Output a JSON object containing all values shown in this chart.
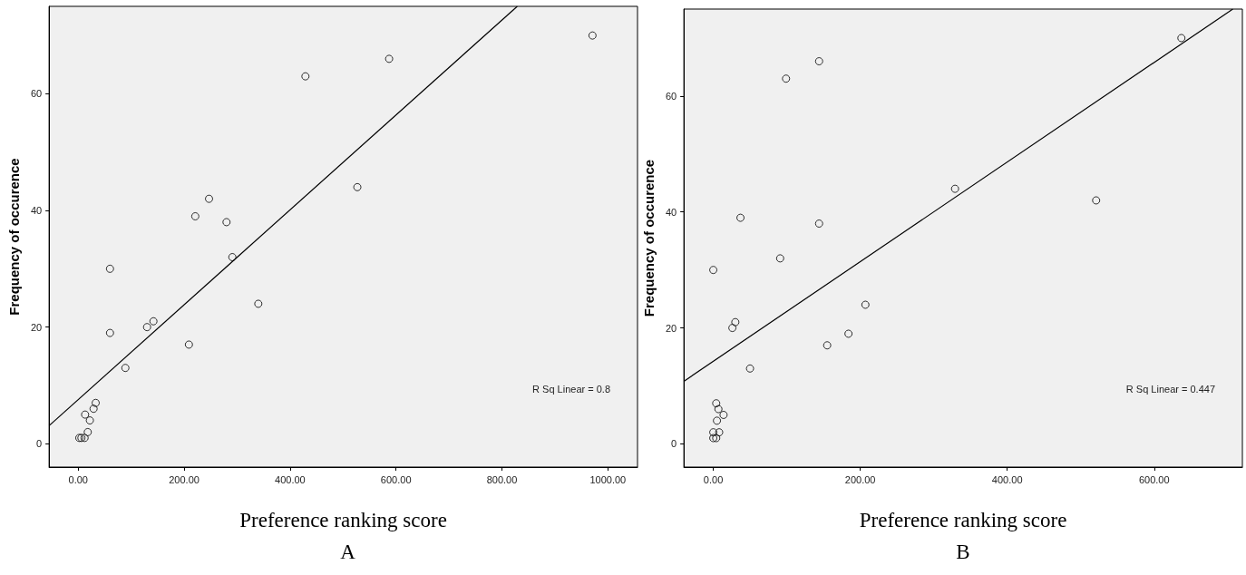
{
  "chart_data": [
    {
      "type": "scatter",
      "title": "A",
      "xlabel": "Preference ranking score",
      "ylabel": "Frequency of occurence",
      "marker": "circle",
      "grid": false,
      "xlim": [
        -55,
        1056
      ],
      "ylim": [
        -4,
        75
      ],
      "xticks": [
        {
          "value": 0,
          "label": "0.00"
        },
        {
          "value": 200,
          "label": "200.00"
        },
        {
          "value": 400,
          "label": "400.00"
        },
        {
          "value": 600,
          "label": "600.00"
        },
        {
          "value": 800,
          "label": "800.00"
        },
        {
          "value": 1000,
          "label": "1000.00"
        }
      ],
      "yticks": [
        0,
        20,
        40,
        60
      ],
      "annotations": [
        "R Sq Linear = 0.8"
      ],
      "series": [
        {
          "type": "scatter",
          "color": "#000000",
          "x": [
            2,
            6,
            12,
            18,
            13,
            22,
            29,
            33,
            60,
            60,
            89,
            130,
            142,
            209,
            221,
            247,
            280,
            291,
            340,
            429,
            527,
            587,
            971
          ],
          "values": [
            1,
            1,
            1,
            2,
            5,
            4,
            6,
            7,
            30,
            19,
            13,
            20,
            21,
            17,
            39,
            42,
            38,
            32,
            24,
            63,
            44,
            66,
            70
          ]
        },
        {
          "type": "line",
          "color": "#000000",
          "marker": "none",
          "x": [
            -55,
            829
          ],
          "values": [
            3.1,
            75
          ]
        }
      ]
    },
    {
      "type": "scatter",
      "title": "B",
      "xlabel": "Preference ranking score",
      "ylabel": "Frequency of occurence",
      "marker": "circle",
      "grid": false,
      "xlim": [
        -40,
        720
      ],
      "ylim": [
        -4,
        75
      ],
      "xticks": [
        {
          "value": 0,
          "label": "0.00"
        },
        {
          "value": 200,
          "label": "200.00"
        },
        {
          "value": 400,
          "label": "400.00"
        },
        {
          "value": 600,
          "label": "600.00"
        }
      ],
      "yticks": [
        0,
        20,
        40,
        60
      ],
      "annotations": [
        "R Sq Linear = 0.447"
      ],
      "series": [
        {
          "type": "scatter",
          "color": "#000000",
          "x": [
            0,
            0,
            4,
            0,
            8,
            5,
            4,
            7,
            14,
            26,
            30,
            50,
            37,
            91,
            99,
            144,
            144,
            155,
            184,
            207,
            329,
            521,
            637
          ],
          "values": [
            30,
            1,
            1,
            2,
            2,
            4,
            7,
            6,
            5,
            20,
            21,
            13,
            39,
            32,
            63,
            66,
            38,
            17,
            19,
            24,
            44,
            42,
            70
          ]
        },
        {
          "type": "line",
          "color": "#000000",
          "marker": "none",
          "x": [
            -40,
            707
          ],
          "values": [
            10.8,
            75
          ]
        }
      ]
    }
  ]
}
